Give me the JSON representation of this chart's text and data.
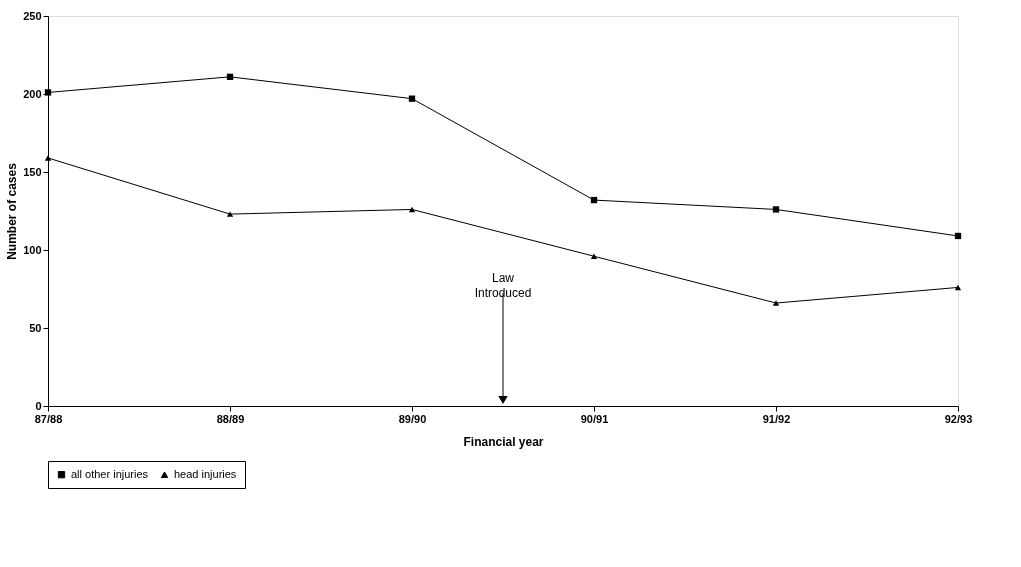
{
  "chart_data": {
    "type": "line",
    "xlabel": "Financial year",
    "ylabel": "Number of cases",
    "categories": [
      "87/88",
      "88/89",
      "89/90",
      "90/91",
      "91/92",
      "92/93"
    ],
    "series": [
      {
        "name": "all other injuries",
        "color": "#000000",
        "marker": "square",
        "values": [
          201,
          211,
          197,
          132,
          126,
          109
        ]
      },
      {
        "name": "head injuries",
        "color": "#000000",
        "marker": "triangle",
        "values": [
          159,
          123,
          126,
          96,
          66,
          76
        ]
      }
    ],
    "ylim": [
      0,
      250
    ],
    "yticks": [
      0,
      50,
      100,
      150,
      200,
      250
    ],
    "grid": false,
    "legend": "bottom",
    "line_style": "solid",
    "annotations": [
      "Law Introduced"
    ]
  }
}
